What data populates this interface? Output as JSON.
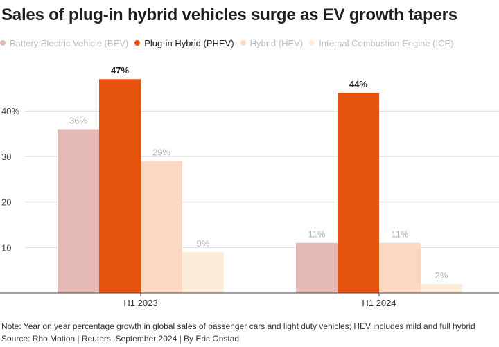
{
  "chart_data": {
    "type": "bar",
    "title": "Sales of plug-in hybrid vehicles surge as EV growth tapers",
    "categories": [
      "H1 2023",
      "H1 2024"
    ],
    "series": [
      {
        "name": "Battery Electric Vehicle (BEV)",
        "color": "#e4b8b5",
        "values": [
          36,
          11
        ],
        "labels": [
          "36%",
          "11%"
        ],
        "label_color": "#b0b0b0"
      },
      {
        "name": "Plug-in Hybrid (PHEV)",
        "color": "#e5530e",
        "values": [
          47,
          44
        ],
        "labels": [
          "47%",
          "44%"
        ],
        "label_color": "#222222"
      },
      {
        "name": "Hybrid (HEV)",
        "color": "#fdd9c5",
        "values": [
          29,
          11
        ],
        "labels": [
          "29%",
          "11%"
        ],
        "label_color": "#b0b0b0"
      },
      {
        "name": "Internal Combustion Engine (ICE)",
        "color": "#fdedd8",
        "values": [
          9,
          2
        ],
        "labels": [
          "9%",
          "2%"
        ],
        "label_color": "#b0b0b0"
      }
    ],
    "highlight_series": "Plug-in Hybrid (PHEV)",
    "yticks": [
      {
        "value": 10,
        "label": "10"
      },
      {
        "value": 20,
        "label": "20"
      },
      {
        "value": 30,
        "label": "30"
      },
      {
        "value": 40,
        "label": "40%"
      }
    ],
    "ylim": [
      0,
      50
    ],
    "xlabel": "",
    "ylabel": "",
    "grid": true,
    "legend_position": "top-left"
  },
  "legend_text_color_muted": "#bdbdbd",
  "legend_text_color_active": "#222222",
  "footer": {
    "note": "Note: Year on year percentage growth in global sales of passenger cars and light duty vehicles; HEV includes mild and full hybrid",
    "source": "Source: Rho Motion | Reuters, September 2024 | By Eric Onstad"
  }
}
